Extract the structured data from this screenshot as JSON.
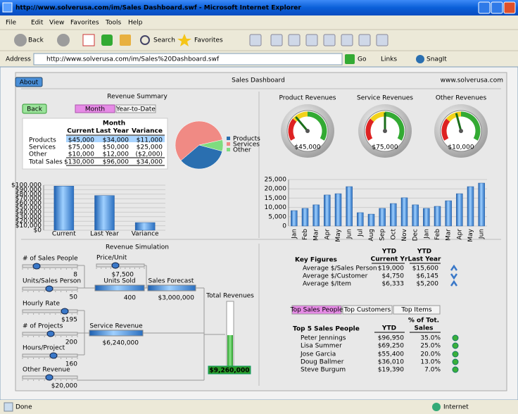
{
  "window": {
    "title": "http://www.solverusa.com/im/Sales Dashboard.swf - Microsoft Internet Explorer",
    "menu": [
      "File",
      "Edit",
      "View",
      "Favorites",
      "Tools",
      "Help"
    ],
    "toolbar": [
      "Back",
      "Search",
      "Favorites"
    ],
    "address_label": "Address",
    "address": "http://www.solverusa.com/im/Sales%20Dashboard.swf",
    "go": "Go",
    "links": "Links",
    "snagit": "SnagIt",
    "status": "Done",
    "zone": "Internet"
  },
  "dashboard": {
    "about": "About",
    "title": "Sales Dashboard",
    "site": "www.solverusa.com",
    "revenue_summary": {
      "title": "Revenue Summary",
      "back": "Back",
      "tabs": [
        "Month",
        "Year-to-Date"
      ],
      "group_header": "Month",
      "columns": [
        "Current",
        "Last Year",
        "Variance"
      ],
      "rows": [
        [
          "Products",
          "$45,000",
          "$34,000",
          "$11,000"
        ],
        [
          "Services",
          "$75,000",
          "$50,000",
          "$25,000"
        ],
        [
          "Other",
          "$10,000",
          "$12,000",
          "($2,000)"
        ],
        [
          "Total Sales",
          "$130,000",
          "$96,000",
          "$34,000"
        ]
      ]
    },
    "pie": {
      "type": "pie",
      "categories": [
        "Products",
        "Services",
        "Other"
      ],
      "values": [
        45000,
        75000,
        10000
      ],
      "colors": [
        "#2a6fb0",
        "#f08a84",
        "#7fdc7f"
      ]
    },
    "summary_chart": {
      "type": "bar",
      "categories": [
        "Current",
        "Last Year",
        "Variance"
      ],
      "values": [
        98000,
        77000,
        17000
      ],
      "color": "#4a90d9",
      "ylim": [
        0,
        100000
      ],
      "yticks": [
        {
          "value": 0,
          "label": "$0"
        },
        {
          "value": 10000,
          "label": "$10,000"
        },
        {
          "value": 20000,
          "label": "$20,000"
        },
        {
          "value": 30000,
          "label": "$30,000"
        },
        {
          "value": 40000,
          "label": "$40,000"
        },
        {
          "value": 50000,
          "label": "$50,000"
        },
        {
          "value": 60000,
          "label": "$60,000"
        },
        {
          "value": 70000,
          "label": "$70,000"
        },
        {
          "value": 80000,
          "label": "$80,000"
        },
        {
          "value": 90000,
          "label": "$90,000"
        },
        {
          "value": 100000,
          "label": "$100,000"
        }
      ],
      "grid": true
    },
    "gauges": [
      {
        "title": "Product Revenues",
        "value_label": "$45,000"
      },
      {
        "title": "Service Revenues",
        "value_label": "$75,000"
      },
      {
        "title": "Other Revenues",
        "value_label": "$10,000"
      }
    ],
    "monthly_chart": {
      "type": "bar",
      "categories": [
        "Jan",
        "Feb",
        "Mar",
        "Apr",
        "May",
        "Jun",
        "Jul",
        "Aug",
        "Sep",
        "Oct",
        "Nov",
        "Dec",
        "Jan",
        "Feb",
        "Mar",
        "Apr",
        "May",
        "Jun"
      ],
      "values": [
        8300,
        9500,
        11400,
        16700,
        17400,
        21200,
        7200,
        6400,
        9500,
        12100,
        15200,
        11400,
        9500,
        10600,
        13600,
        17400,
        21200,
        23100
      ],
      "color": "#4a90d9",
      "ylim": [
        0,
        25000
      ],
      "yticks": [
        0,
        {
          "value": 5000,
          "label": "5,000"
        },
        {
          "value": 10000,
          "label": "10,000"
        },
        {
          "value": 15000,
          "label": "15,000"
        },
        {
          "value": 20000,
          "label": "20,000"
        },
        {
          "value": 25000,
          "label": "25,000"
        }
      ],
      "grid": true
    },
    "simulation": {
      "title": "Revenue Simulation",
      "inputs": [
        {
          "label": "# of Sales People",
          "value": 8
        },
        {
          "label": "Units/Sales Person",
          "value": 50
        },
        {
          "label": "Hourly Rate",
          "value": "$195"
        },
        {
          "label": "# of Projects",
          "value": 200
        },
        {
          "label": "Hours/Project",
          "value": 160
        },
        {
          "label": "Other Revenue",
          "value": "$20,000"
        },
        {
          "label": "Price/Unit",
          "value": "$7,500"
        }
      ],
      "outputs": [
        {
          "label": "Units Sold",
          "value": 400
        },
        {
          "label": "Sales Forecast",
          "value": "$3,000,000"
        },
        {
          "label": "Service Revenue",
          "value": "$6,240,000"
        },
        {
          "label": "Total Revenues",
          "value": "$9,260,000"
        }
      ]
    },
    "key_figures": {
      "title": "Key Figures",
      "columns": [
        [
          "YTD",
          "Current Yr"
        ],
        [
          "YTD",
          "Last Year"
        ]
      ],
      "rows": [
        [
          "Average $/Sales Person",
          "$19,000",
          "$15,600"
        ],
        [
          "Average $/Customer",
          "$4,750",
          "$6,145"
        ],
        [
          "Average $/Item",
          "$6,333",
          "$5,200"
        ]
      ]
    },
    "top5": {
      "tabs": [
        "Top Sales People",
        "Top Customers",
        "Top Items"
      ],
      "title": "Top 5 Sales People",
      "ytd": "YTD",
      "share": [
        "% of Tot.",
        "Sales"
      ],
      "rows": [
        [
          "Peter Jennings",
          "$96,950",
          "35.0%"
        ],
        [
          "Lisa Summer",
          "$69,250",
          "25.0%"
        ],
        [
          "Jose Garcia",
          "$55,400",
          "20.0%"
        ],
        [
          "Doug Ballmer",
          "$36,010",
          "13.0%"
        ],
        [
          "Steve Burgum",
          "$19,390",
          "7.0%"
        ]
      ]
    }
  }
}
